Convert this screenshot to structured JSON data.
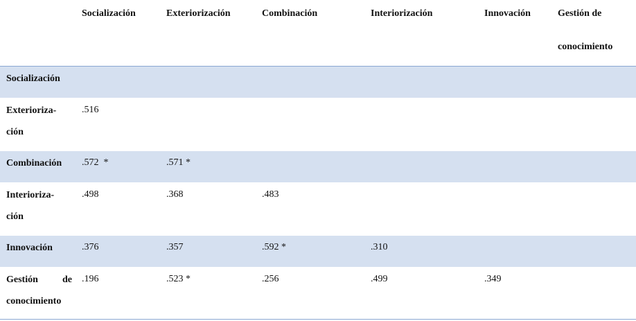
{
  "table": {
    "columns": [
      "Socialización",
      "Exteriorización",
      "Combinación",
      "Interiorización",
      "Innovación",
      "Gestión de conocimiento"
    ],
    "rows": [
      {
        "label": "Socialización",
        "cells": []
      },
      {
        "label": "Exterioriza-\nción",
        "cells": [
          ".516"
        ]
      },
      {
        "label": "Combinación",
        "cells": [
          ".572  *",
          ".571 *"
        ]
      },
      {
        "label": "Interioriza-\nción",
        "cells": [
          ".498",
          ".368",
          ".483"
        ]
      },
      {
        "label": "Innovación",
        "cells": [
          ".376",
          ".357",
          ".592 *",
          ".310"
        ]
      },
      {
        "label": "Gestión de conocimiento",
        "cells": [
          ".196",
          ".523 *",
          ".256",
          ".499",
          ".349"
        ]
      }
    ]
  }
}
